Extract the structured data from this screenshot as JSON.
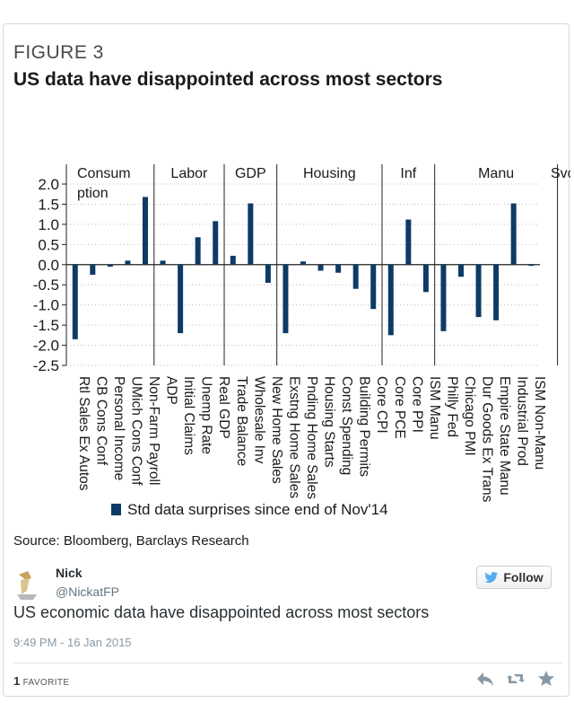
{
  "figure": {
    "label": "FIGURE 3",
    "title": "US data have disappointed across most sectors",
    "source": "Source: Bloomberg, Barclays Research"
  },
  "chart_data": {
    "type": "bar",
    "bar_color": "#0d3b66",
    "ylim": [
      -2.5,
      2.0
    ],
    "yticks": [
      "2.0",
      "1.5",
      "1.0",
      "0.5",
      "0.0",
      "-0.5",
      "-1.0",
      "-1.5",
      "-2.0",
      "-2.5"
    ],
    "legend": "Std data surprises since end of Nov'14",
    "groups": [
      {
        "name": "Consum ption",
        "lines": [
          "Consum",
          "ption"
        ],
        "start": 0,
        "end": 4
      },
      {
        "name": "Labor",
        "lines": [
          "Labor"
        ],
        "start": 5,
        "end": 8
      },
      {
        "name": "GDP",
        "lines": [
          "GDP"
        ],
        "start": 9,
        "end": 11
      },
      {
        "name": "Housing",
        "lines": [
          "Housing"
        ],
        "start": 12,
        "end": 17
      },
      {
        "name": "Inf",
        "lines": [
          "Inf"
        ],
        "start": 18,
        "end": 20
      },
      {
        "name": "Manu",
        "lines": [
          "Manu"
        ],
        "start": 21,
        "end": 27
      },
      {
        "name": "Svcs",
        "lines": [
          "Svcs"
        ],
        "start": 28,
        "end": 28
      }
    ],
    "categories": [
      "Rtl Sales Ex Autos",
      "CB Cons Conf",
      "Personal Income",
      "UMich Cons Conf",
      "Non-Farm Payroll",
      "ADP",
      "Initial Claims",
      "Unemp Rate",
      "Real GDP",
      "Trade Balance",
      "Wholesale Inv",
      "New Home Sales",
      "Exstng Home Sales",
      "Pnding Home Sales",
      "Housing Starts",
      "Const Spending",
      "Building Permits",
      "Core CPI",
      "Core PCE",
      "Core PPI",
      "ISM Manu",
      "Philly Fed",
      "Chicago PMI",
      "Dur Goods Ex Trans",
      "Empire State Manu",
      "Industrial Prod",
      "ISM Non-Manu"
    ],
    "values": [
      -1.85,
      -0.25,
      -0.05,
      0.1,
      1.68,
      0.1,
      -1.7,
      0.68,
      1.08,
      0.22,
      1.52,
      -0.45,
      -1.7,
      0.08,
      -0.15,
      -0.2,
      -0.6,
      -1.1,
      -1.75,
      1.12,
      -0.68,
      -1.65,
      -0.3,
      -1.3,
      -1.38,
      1.52,
      -0.03
    ]
  },
  "tweet": {
    "author": "Nick",
    "handle": "@NickatFP",
    "follow_label": "Follow",
    "text": "US economic data have disappointed across most sectors",
    "time": "9:49 PM - 16 Jan 2015",
    "favorites_count": "1",
    "favorites_label": "FAVORITE"
  },
  "icons": {
    "bird": "twitter-bird-icon",
    "reply": "reply-icon",
    "retweet": "retweet-icon",
    "favorite": "star-icon"
  }
}
